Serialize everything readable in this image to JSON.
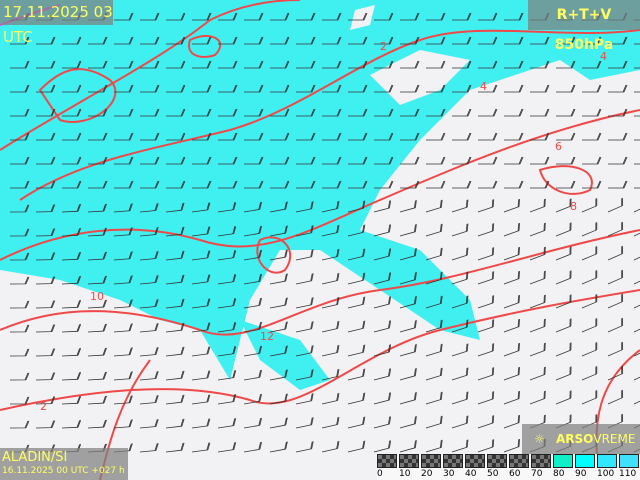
{
  "header": {
    "valid_time": "17.11.2025 03 UTC",
    "product": "R+T+V 850hPa"
  },
  "footer": {
    "model": "ALADIN/SI",
    "run": "16.11.2025 00 UTC +027 h",
    "brand_bold": "ARSO",
    "brand_light": "VREME",
    "brand_icon": "sun-icon"
  },
  "legend": {
    "labels": [
      "0",
      "10",
      "20",
      "30",
      "40",
      "50",
      "60",
      "70",
      "80",
      "90",
      "100",
      "110"
    ],
    "colors": [
      "#444",
      "#444",
      "#444",
      "#444",
      "#444",
      "#444",
      "#444",
      "#444",
      "#10f0c8",
      "#00ffff",
      "#30e8ff",
      "#40e0ff"
    ]
  },
  "colors": {
    "humidity": "#40f0f0",
    "isotherm": "#f04848",
    "zero_isotherm": "#ff40ff",
    "land": "#f2f2f4"
  },
  "contour_labels": [
    "2",
    "4",
    "6",
    "8",
    "10",
    "12"
  ]
}
